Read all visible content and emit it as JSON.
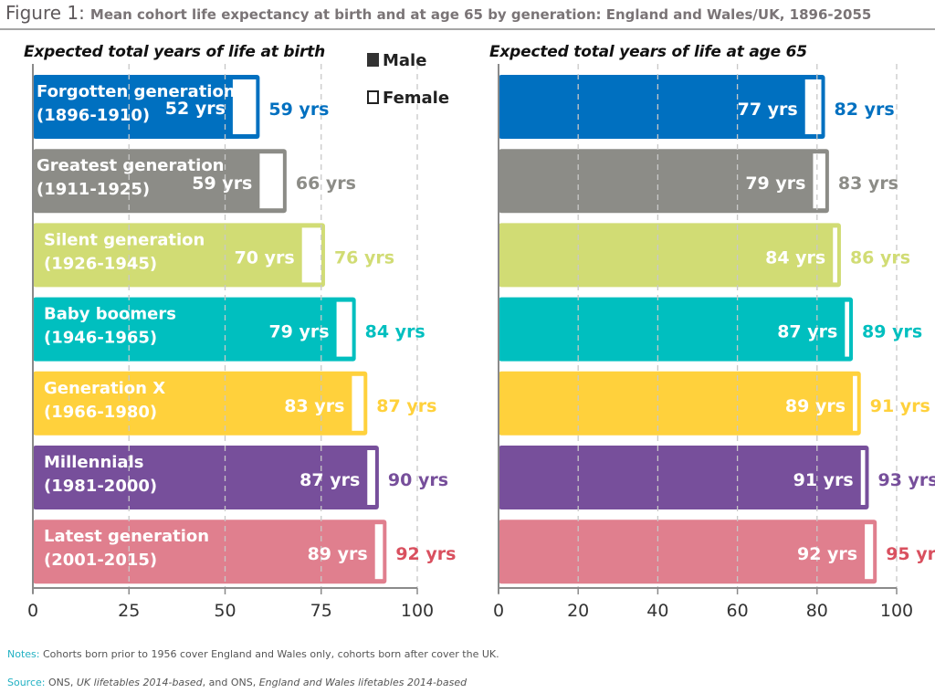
{
  "figure": {
    "number_label": "Figure 1:",
    "title": "Mean cohort life expectancy at birth and at age 65 by generation: England and Wales/UK, 1896-2055"
  },
  "legend": {
    "male": "Male",
    "female": "Female"
  },
  "notes": {
    "notes_label": "Notes:",
    "notes_text": "Cohorts born prior to 1956 cover England and Wales only, cohorts born after cover the UK.",
    "source_label": "Source:",
    "source_parts": [
      "ONS, ",
      "UK lifetables 2014-based",
      ", and ONS, ",
      "England and Wales lifetables 2014-based"
    ]
  },
  "chart_data": [
    {
      "type": "bar",
      "orientation": "horizontal",
      "title": "Expected total years of life at birth",
      "xlabel": "",
      "ylabel": "",
      "xlim": [
        0,
        100
      ],
      "xticks": [
        0,
        25,
        50,
        75,
        100
      ],
      "grid": "vertical dashed",
      "value_suffix": " yrs",
      "categories": [
        {
          "name": "Forgotten generation",
          "years": "(1896-1910)",
          "color": "#0070c0"
        },
        {
          "name": "Greatest generation",
          "years": "(1911-1925)",
          "color": "#8c8c87"
        },
        {
          "name": "Silent generation",
          "years": "(1926-1945)",
          "color": "#d1dc74"
        },
        {
          "name": "Baby boomers",
          "years": "(1946-1965)",
          "color": "#00bfbf"
        },
        {
          "name": "Generation X",
          "years": "(1966-1980)",
          "color": "#ffd13c"
        },
        {
          "name": "Millennials",
          "years": "(1981-2000)",
          "color": "#774f9b"
        },
        {
          "name": "Latest generation",
          "years": "(2001-2015)",
          "color": "#e07f8e"
        }
      ],
      "series": [
        {
          "name": "Male",
          "values": [
            52,
            59,
            70,
            79,
            83,
            87,
            89
          ]
        },
        {
          "name": "Female",
          "values": [
            59,
            66,
            76,
            84,
            87,
            90,
            92
          ]
        }
      ],
      "female_label_colors": [
        "#0070c0",
        "#8c8c87",
        "#d1dc74",
        "#00bfbf",
        "#ffd13c",
        "#774f9b",
        "#d9505f"
      ]
    },
    {
      "type": "bar",
      "orientation": "horizontal",
      "title": "Expected total years of life at age 65",
      "xlabel": "",
      "ylabel": "",
      "xlim": [
        0,
        100
      ],
      "xticks": [
        0,
        20,
        40,
        60,
        80,
        100
      ],
      "grid": "vertical dashed",
      "value_suffix": " yrs",
      "categories": [
        {
          "name": "Forgotten generation",
          "color": "#0070c0"
        },
        {
          "name": "Greatest generation",
          "color": "#8c8c87"
        },
        {
          "name": "Silent generation",
          "color": "#d1dc74"
        },
        {
          "name": "Baby boomers",
          "color": "#00bfbf"
        },
        {
          "name": "Generation X",
          "color": "#ffd13c"
        },
        {
          "name": "Millennials",
          "color": "#774f9b"
        },
        {
          "name": "Latest generation",
          "color": "#e07f8e"
        }
      ],
      "series": [
        {
          "name": "Male",
          "values": [
            77,
            79,
            84,
            87,
            89,
            91,
            92
          ]
        },
        {
          "name": "Female",
          "values": [
            82,
            83,
            86,
            89,
            91,
            93,
            95
          ]
        }
      ],
      "female_label_colors": [
        "#0070c0",
        "#8c8c87",
        "#d1dc74",
        "#00bfbf",
        "#ffd13c",
        "#774f9b",
        "#d9505f"
      ]
    }
  ]
}
